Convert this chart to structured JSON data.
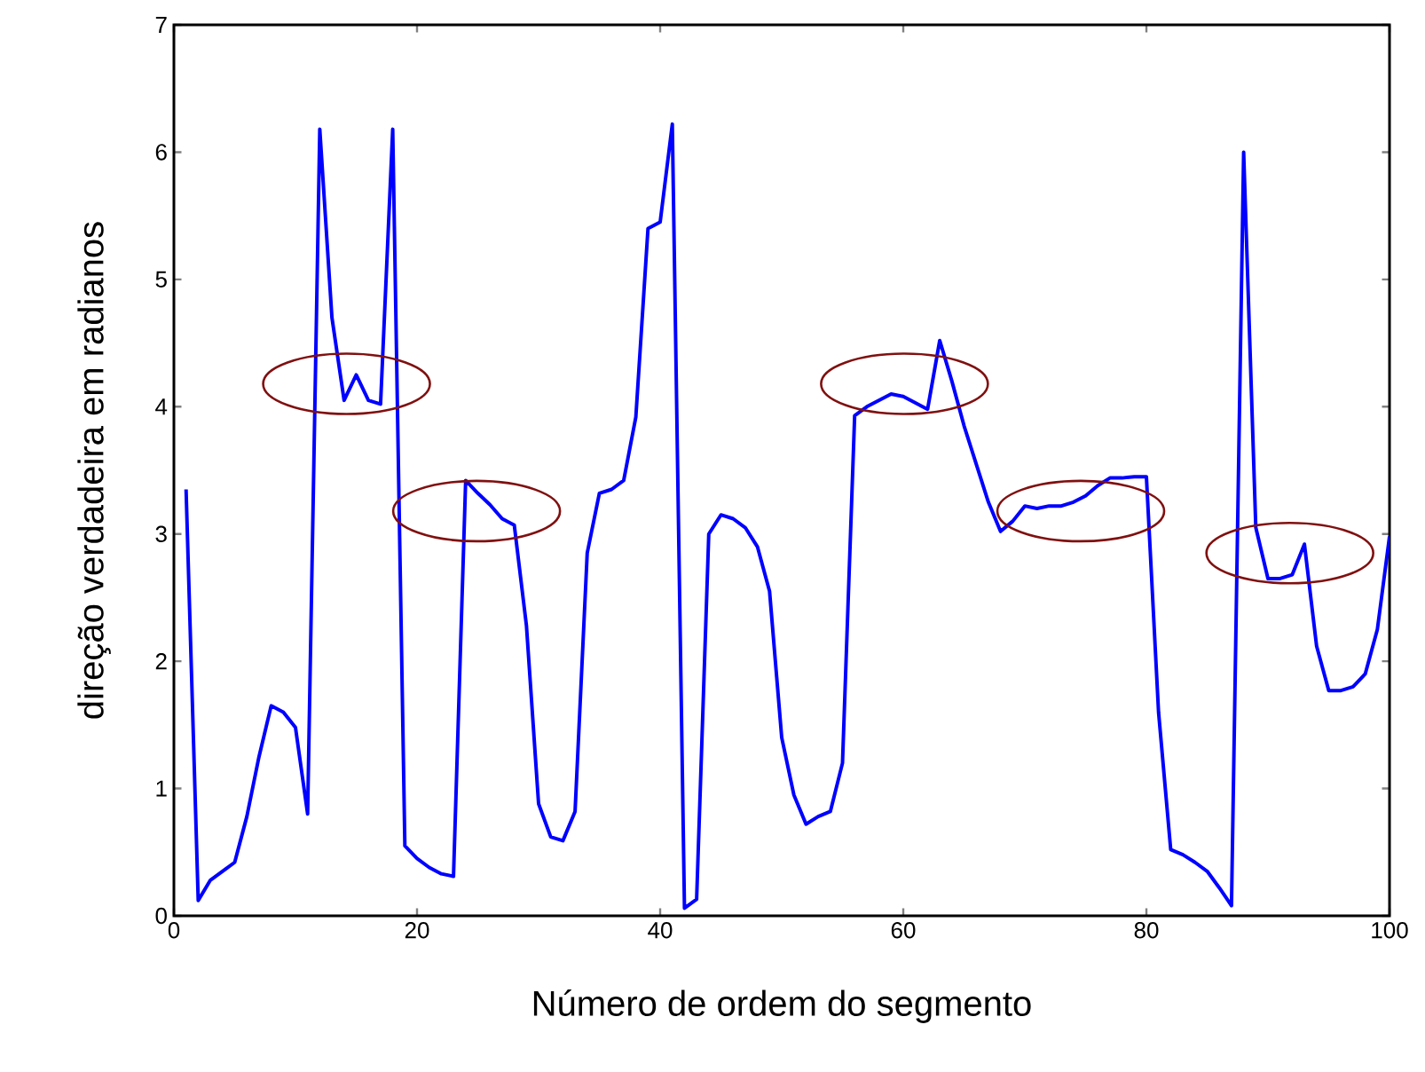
{
  "chart_data": {
    "type": "line",
    "xlabel": "Número de ordem do segmento",
    "ylabel": "direção verdadeira em radianos",
    "x": [
      1,
      2,
      3,
      5,
      6,
      7,
      8,
      9,
      10,
      11,
      12,
      13,
      14,
      15,
      16,
      17,
      18,
      19,
      20,
      21,
      22,
      23,
      24,
      25,
      26,
      27,
      28,
      29,
      30,
      31,
      32,
      33,
      34,
      35,
      36,
      37,
      38,
      39,
      40,
      41,
      42,
      43,
      44,
      45,
      46,
      47,
      48,
      49,
      50,
      51,
      52,
      53,
      54,
      55,
      56,
      57,
      58,
      59,
      60,
      61,
      62,
      63,
      64,
      65,
      66,
      67,
      68,
      69,
      70,
      71,
      72,
      73,
      74,
      75,
      76,
      77,
      78,
      79,
      80,
      81,
      82,
      83,
      84,
      85,
      86,
      87,
      88,
      89,
      90,
      91,
      92,
      93,
      94,
      95,
      96,
      97,
      98,
      99,
      100
    ],
    "series": [
      {
        "color": "#0000ff",
        "values": [
          3.35,
          0.12,
          0.28,
          0.42,
          0.78,
          1.25,
          1.65,
          1.6,
          1.48,
          0.8,
          6.18,
          4.7,
          4.05,
          4.25,
          4.05,
          4.02,
          6.18,
          0.55,
          0.45,
          0.38,
          0.33,
          0.31,
          3.42,
          3.32,
          3.23,
          3.12,
          3.07,
          2.28,
          0.88,
          0.62,
          0.59,
          0.82,
          2.85,
          3.32,
          3.35,
          3.42,
          3.92,
          5.4,
          5.45,
          6.22,
          0.06,
          0.13,
          3.0,
          3.15,
          3.12,
          3.05,
          2.9,
          2.55,
          1.4,
          0.95,
          0.72,
          0.78,
          0.82,
          1.2,
          3.93,
          4.0,
          4.05,
          4.1,
          4.08,
          4.03,
          3.98,
          4.52,
          4.2,
          3.85,
          3.55,
          3.25,
          3.02,
          3.1,
          3.22,
          3.2,
          3.22,
          3.22,
          3.25,
          3.3,
          3.38,
          3.44,
          3.44,
          3.45,
          3.45,
          1.6,
          0.52,
          0.48,
          0.42,
          0.35,
          0.22,
          0.08,
          6.0,
          3.05,
          2.65,
          2.65,
          2.68,
          2.92,
          2.12,
          1.77,
          1.77,
          1.8,
          1.9,
          2.25,
          2.98
        ]
      }
    ],
    "xlim": [
      0,
      100
    ],
    "ylim": [
      0,
      7
    ],
    "xticks": [
      0,
      20,
      40,
      60,
      80,
      100
    ],
    "yticks": [
      0,
      1,
      2,
      3,
      4,
      5,
      6,
      7
    ],
    "marker": "none",
    "line_style": "solid"
  }
}
